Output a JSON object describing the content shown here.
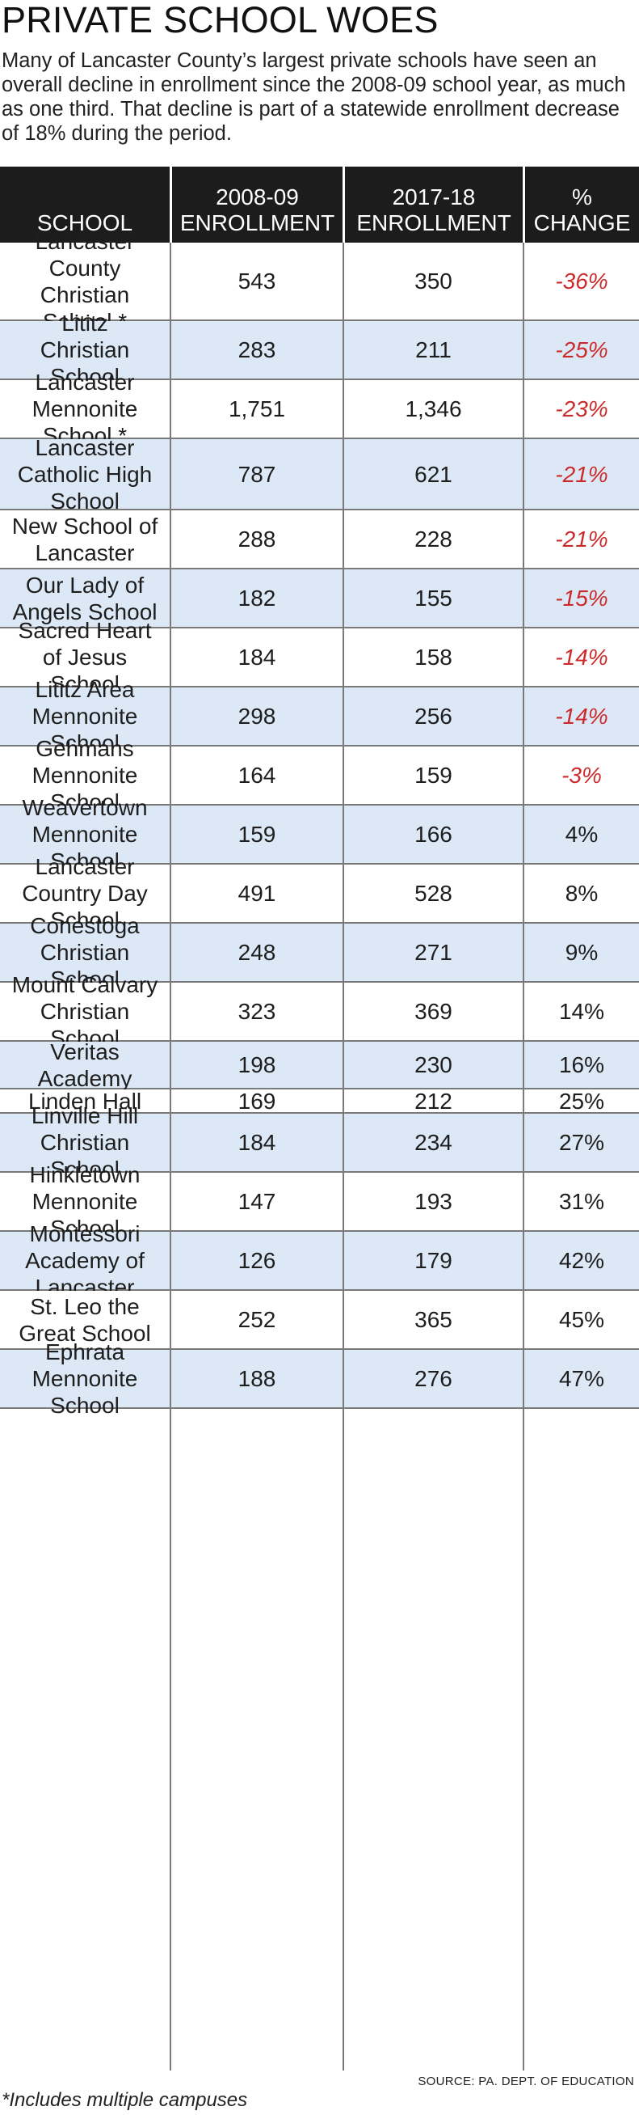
{
  "title": "PRIVATE SCHOOL WOES",
  "subtitle": "Many of Lancaster County’s largest private schools have seen an overall decline in enrollment since the 2008-09 school year, as much as one third. That decline is part of a statewide enrollment decrease of 18% during the period.",
  "headers": {
    "school": "SCHOOL",
    "enroll_2008_line1": "2008-09",
    "enroll_2008_line2": "ENROLLMENT",
    "enroll_2017_line1": "2017-18",
    "enroll_2017_line2": "ENROLLMENT",
    "change_line1": "%",
    "change_line2": "CHANGE"
  },
  "source": "SOURCE: PA. DEPT. OF EDUCATION",
  "footnote": "*Includes multiple campuses",
  "colors": {
    "header_bg": "#1c1c1c",
    "alt_row": "#dde8f6",
    "negative": "#cc2a2a"
  },
  "chart_data": {
    "type": "table",
    "title": "PRIVATE SCHOOL WOES",
    "columns": [
      "SCHOOL",
      "2008-09 ENROLLMENT",
      "2017-18 ENROLLMENT",
      "% CHANGE"
    ],
    "rows": [
      {
        "school": [
          "Lancaster",
          "County",
          "Christian",
          "School *"
        ],
        "e2008": "543",
        "e2017": "350",
        "change": "-36%",
        "negative": true
      },
      {
        "school": [
          "Lititz",
          "Christian",
          "School"
        ],
        "e2008": "283",
        "e2017": "211",
        "change": "-25%",
        "negative": true
      },
      {
        "school": [
          "Lancaster",
          "Mennonite",
          "School *"
        ],
        "e2008": "1,751",
        "e2017": "1,346",
        "change": "-23%",
        "negative": true
      },
      {
        "school": [
          "Lancaster",
          "Catholic High",
          "School"
        ],
        "e2008": "787",
        "e2017": "621",
        "change": "-21%",
        "negative": true
      },
      {
        "school": [
          "New School of",
          "Lancaster"
        ],
        "e2008": "288",
        "e2017": "228",
        "change": "-21%",
        "negative": true
      },
      {
        "school": [
          "Our Lady of",
          "Angels School"
        ],
        "e2008": "182",
        "e2017": "155",
        "change": "-15%",
        "negative": true
      },
      {
        "school": [
          "Sacred Heart",
          "of Jesus",
          "School"
        ],
        "e2008": "184",
        "e2017": "158",
        "change": "-14%",
        "negative": true
      },
      {
        "school": [
          "Lititz Area",
          "Mennonite",
          "School"
        ],
        "e2008": "298",
        "e2017": "256",
        "change": "-14%",
        "negative": true
      },
      {
        "school": [
          "Gehmans",
          "Mennonite",
          "School"
        ],
        "e2008": "164",
        "e2017": "159",
        "change": "-3%",
        "negative": true
      },
      {
        "school": [
          "Weavertown",
          "Mennonite",
          "School"
        ],
        "e2008": "159",
        "e2017": "166",
        "change": "4%",
        "negative": false
      },
      {
        "school": [
          "Lancaster",
          "Country Day",
          "School"
        ],
        "e2008": "491",
        "e2017": "528",
        "change": "8%",
        "negative": false
      },
      {
        "school": [
          "Conestoga",
          "Christian",
          "School"
        ],
        "e2008": "248",
        "e2017": "271",
        "change": "9%",
        "negative": false
      },
      {
        "school": [
          "Mount Calvary",
          "Christian",
          "School"
        ],
        "e2008": "323",
        "e2017": "369",
        "change": "14%",
        "negative": false
      },
      {
        "school": [
          "Veritas",
          "Academy"
        ],
        "e2008": "198",
        "e2017": "230",
        "change": "16%",
        "negative": false
      },
      {
        "school": [
          "Linden Hall"
        ],
        "e2008": "169",
        "e2017": "212",
        "change": "25%",
        "negative": false
      },
      {
        "school": [
          "Linville Hill",
          "Christian",
          "School"
        ],
        "e2008": "184",
        "e2017": "234",
        "change": "27%",
        "negative": false
      },
      {
        "school": [
          "Hinkletown",
          "Mennonite",
          "School"
        ],
        "e2008": "147",
        "e2017": "193",
        "change": "31%",
        "negative": false
      },
      {
        "school": [
          "Montessori",
          "Academy of",
          "Lancaster"
        ],
        "e2008": "126",
        "e2017": "179",
        "change": "42%",
        "negative": false
      },
      {
        "school": [
          "St. Leo the",
          "Great School"
        ],
        "e2008": "252",
        "e2017": "365",
        "change": "45%",
        "negative": false
      },
      {
        "school": [
          "Ephrata",
          "Mennonite",
          "School"
        ],
        "e2008": "188",
        "e2017": "276",
        "change": "47%",
        "negative": false
      }
    ]
  }
}
